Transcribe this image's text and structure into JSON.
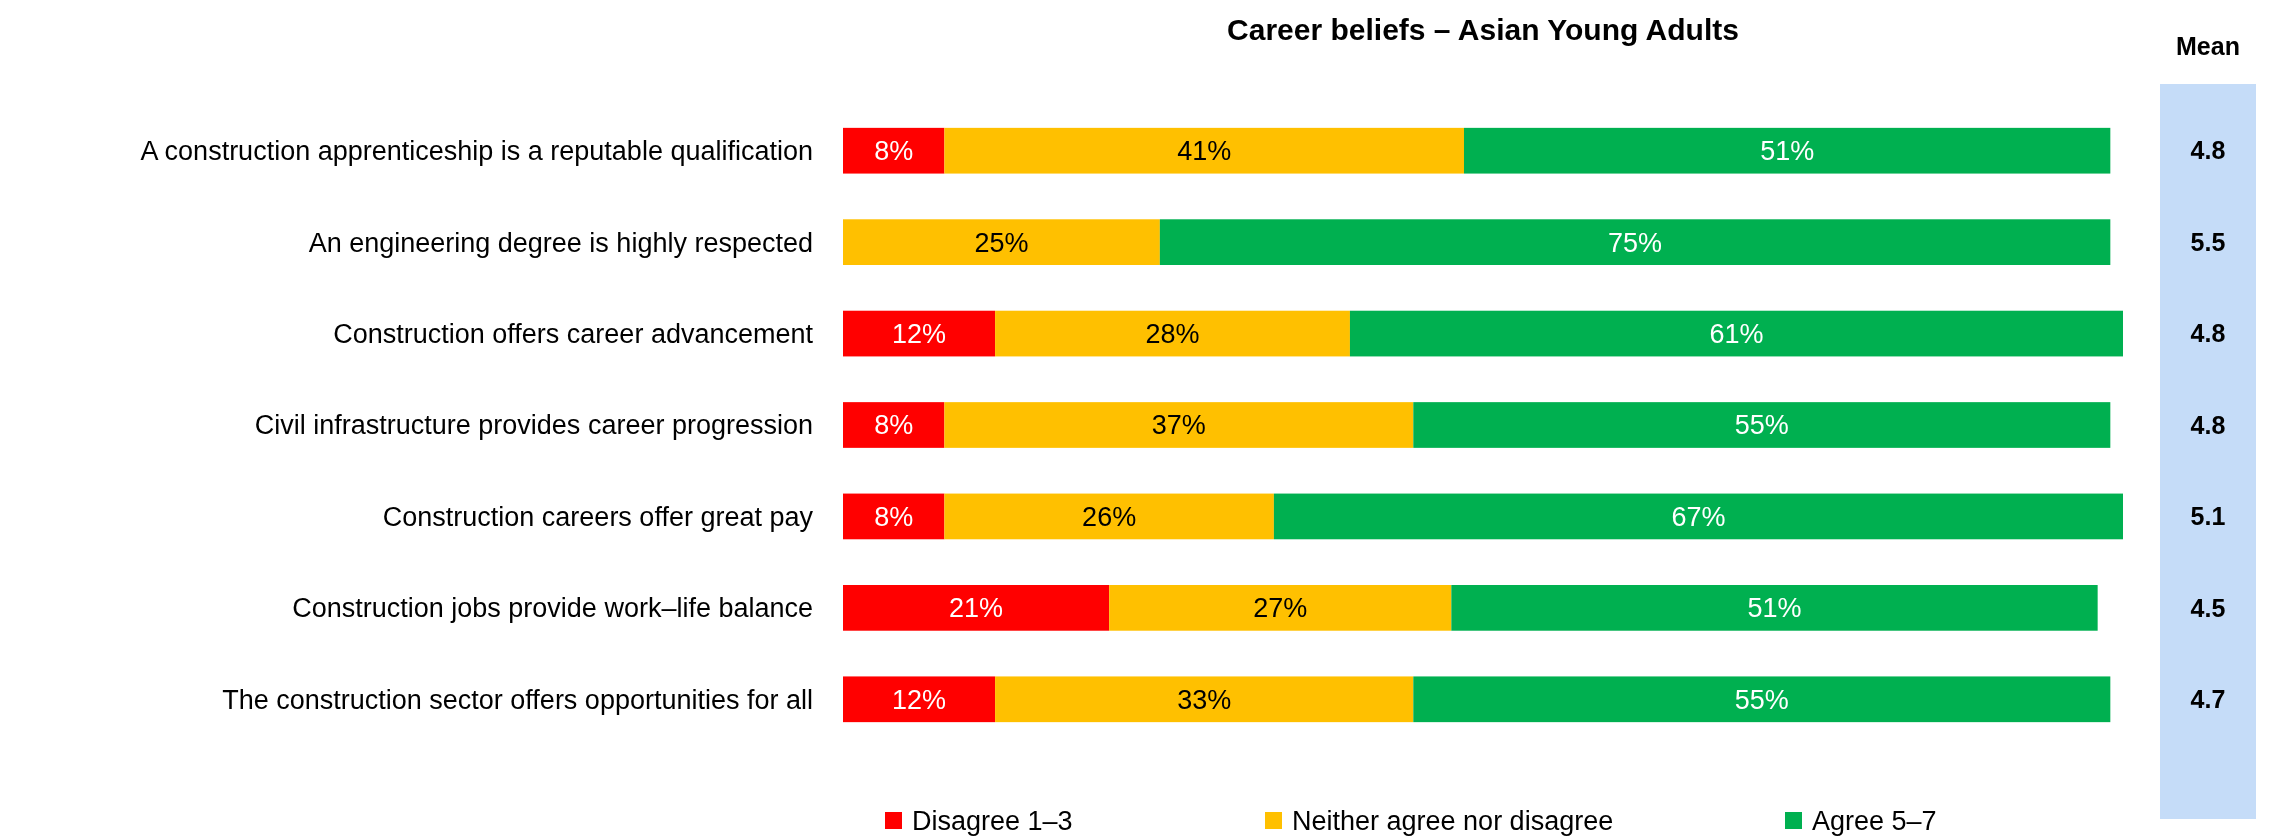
{
  "chart_data": {
    "type": "bar",
    "orientation": "horizontal",
    "stacked": true,
    "title": "Career beliefs – Asian Young Adults",
    "categories": [
      "A construction apprenticeship is a reputable qualification",
      "An engineering degree is highly respected",
      "Construction offers career advancement",
      "Civil infrastructure provides career progression",
      "Construction careers offer great pay",
      "Construction jobs provide work–life balance",
      "The construction sector offers opportunities for all"
    ],
    "series": [
      {
        "name": "Disagree 1–3",
        "color": "#ff0000",
        "values": [
          8,
          null,
          12,
          8,
          8,
          21,
          12
        ],
        "value_labels": [
          "8%",
          null,
          "12%",
          "8%",
          "8%",
          "21%",
          "12%"
        ]
      },
      {
        "name": "Neither agree nor disagree",
        "color": "#ffc000",
        "values": [
          41,
          25,
          28,
          37,
          26,
          27,
          33
        ],
        "value_labels": [
          "41%",
          "25%",
          "28%",
          "37%",
          "26%",
          "27%",
          "33%"
        ]
      },
      {
        "name": "Agree 5–7",
        "color": "#00b050",
        "values": [
          51,
          75,
          61,
          55,
          67,
          51,
          55
        ],
        "value_labels": [
          "51%",
          "75%",
          "61%",
          "55%",
          "67%",
          "51%",
          "55%"
        ]
      }
    ],
    "xlim": [
      0,
      101
    ],
    "tick_labels": "y",
    "legend": "bottom",
    "annotations": [
      "Mean",
      "4.8",
      "5.5",
      "4.8",
      "4.8",
      "5.1",
      "4.5",
      "4.7"
    ]
  }
}
